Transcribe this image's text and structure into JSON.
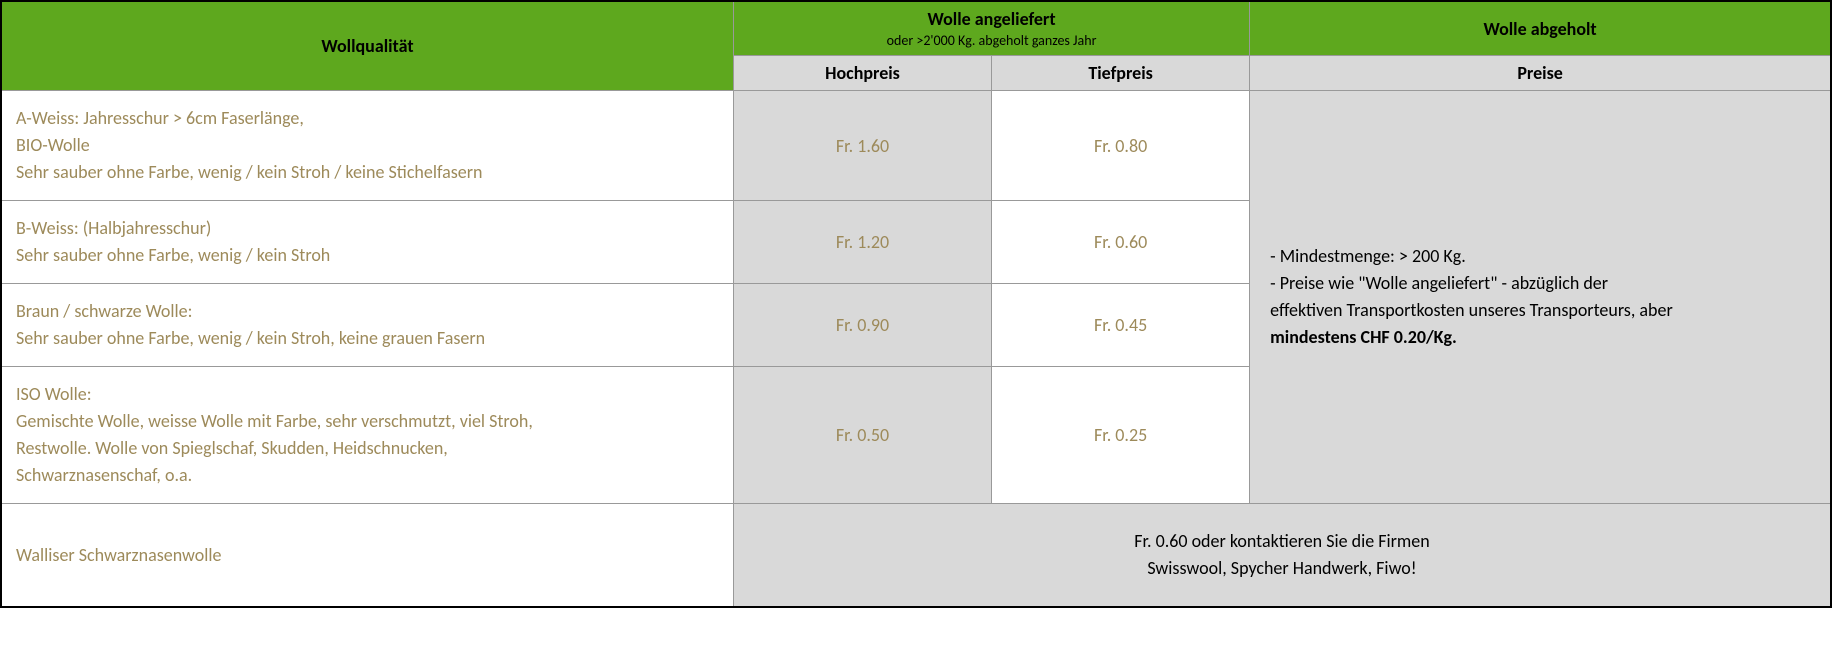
{
  "headers": {
    "quality": "Wollqualität",
    "delivered_title": "Wolle angeliefert",
    "delivered_sub": "oder >2'000 Kg. abgeholt ganzes Jahr",
    "hochpreis": "Hochpreis",
    "tiefpreis": "Tiefpreis",
    "pickedup_title": "Wolle abgeholt",
    "preise": "Preise"
  },
  "rows": [
    {
      "lines": [
        "A-Weiss: Jahresschur > 6cm Faserlänge,",
        "BIO-Wolle",
        "Sehr sauber ohne Farbe, wenig / kein Stroh / keine Stichelfasern"
      ],
      "hoch": "Fr. 1.60",
      "tief": "Fr. 0.80"
    },
    {
      "lines": [
        "B-Weiss: (Halbjahresschur)",
        "Sehr sauber ohne Farbe, wenig / kein Stroh"
      ],
      "hoch": "Fr. 1.20",
      "tief": "Fr. 0.60"
    },
    {
      "lines": [
        "Braun / schwarze Wolle:",
        "Sehr sauber ohne Farbe, wenig / kein Stroh, keine grauen Fasern"
      ],
      "hoch": "Fr. 0.90",
      "tief": "Fr. 0.45"
    },
    {
      "lines": [
        "ISO Wolle:",
        "Gemischte Wolle, weisse Wolle mit Farbe, sehr verschmutzt, viel Stroh,",
        "Restwolle. Wolle von Spieglschaf, Skudden, Heidschnucken,",
        "Schwarznasenschaf, o.a."
      ],
      "hoch": "Fr. 0.50",
      "tief": "Fr. 0.25"
    }
  ],
  "notes": {
    "line1": "- Mindestmenge: > 200 Kg.",
    "line2a": "- Preise wie \"Wolle angeliefert\" - abzüglich der",
    "line2b": "effektiven Transportkosten unseres Transporteurs, aber",
    "min_label": "mindestens CHF 0.20/Kg."
  },
  "footer": {
    "quality": "Walliser Schwarznasenwolle",
    "line1": "Fr. 0.60 oder kontaktieren Sie die Firmen",
    "line2": "Swisswool, Spycher Handwerk, Fiwo!"
  },
  "colors": {
    "header_green": "#5ea81e",
    "grey": "#d9d9d9",
    "text_brown": "#9d8a5a",
    "border": "#999999",
    "outer_border": "#000000"
  }
}
